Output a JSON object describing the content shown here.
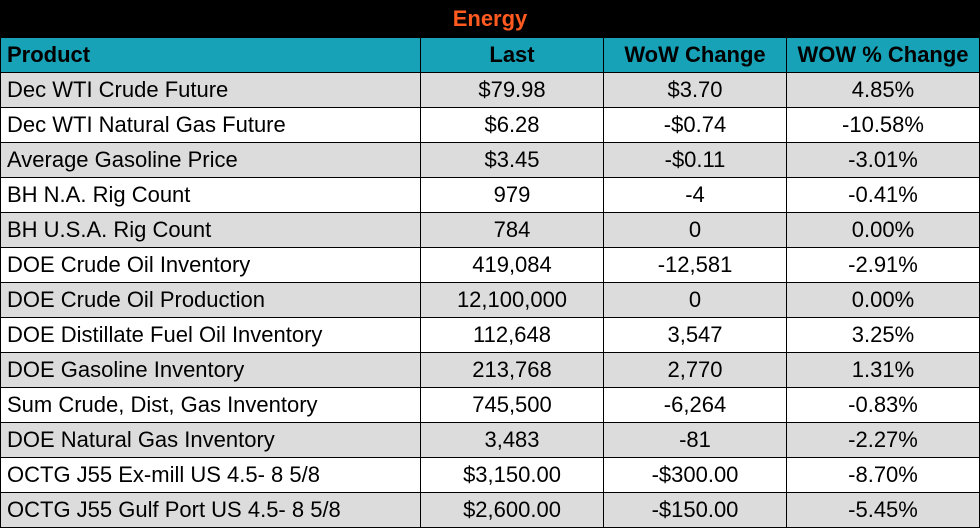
{
  "title": "Energy",
  "columns": [
    "Product",
    "Last",
    "WoW Change",
    "WOW % Change"
  ],
  "rows": [
    [
      "Dec WTI Crude Future",
      "$79.98",
      "$3.70",
      "4.85%"
    ],
    [
      "Dec WTI Natural Gas Future",
      "$6.28",
      "-$0.74",
      "-10.58%"
    ],
    [
      "Average Gasoline Price",
      "$3.45",
      "-$0.11",
      "-3.01%"
    ],
    [
      "BH N.A. Rig Count",
      "979",
      "-4",
      "-0.41%"
    ],
    [
      "BH U.S.A. Rig Count",
      "784",
      "0",
      "0.00%"
    ],
    [
      "DOE Crude Oil Inventory",
      "419,084",
      "-12,581",
      "-2.91%"
    ],
    [
      "DOE Crude Oil Production",
      "12,100,000",
      "0",
      "0.00%"
    ],
    [
      "DOE Distillate Fuel Oil Inventory",
      "112,648",
      "3,547",
      "3.25%"
    ],
    [
      "DOE Gasoline Inventory",
      "213,768",
      "2,770",
      "1.31%"
    ],
    [
      "Sum Crude, Dist, Gas Inventory",
      "745,500",
      "-6,264",
      "-0.83%"
    ],
    [
      "DOE Natural Gas Inventory",
      "3,483",
      "-81",
      "-2.27%"
    ],
    [
      "OCTG J55 Ex-mill US 4.5- 8 5/8",
      "$3,150.00",
      "-$300.00",
      "-8.70%"
    ],
    [
      "OCTG J55 Gulf Port US 4.5- 8 5/8",
      "$2,600.00",
      "-$150.00",
      "-5.45%"
    ]
  ],
  "colors": {
    "title_bg": "#000000",
    "title_text": "#ff5a1f",
    "header_bg": "#17a2b8",
    "row_shade": "#dcdcdc",
    "row_plain": "#ffffff"
  }
}
